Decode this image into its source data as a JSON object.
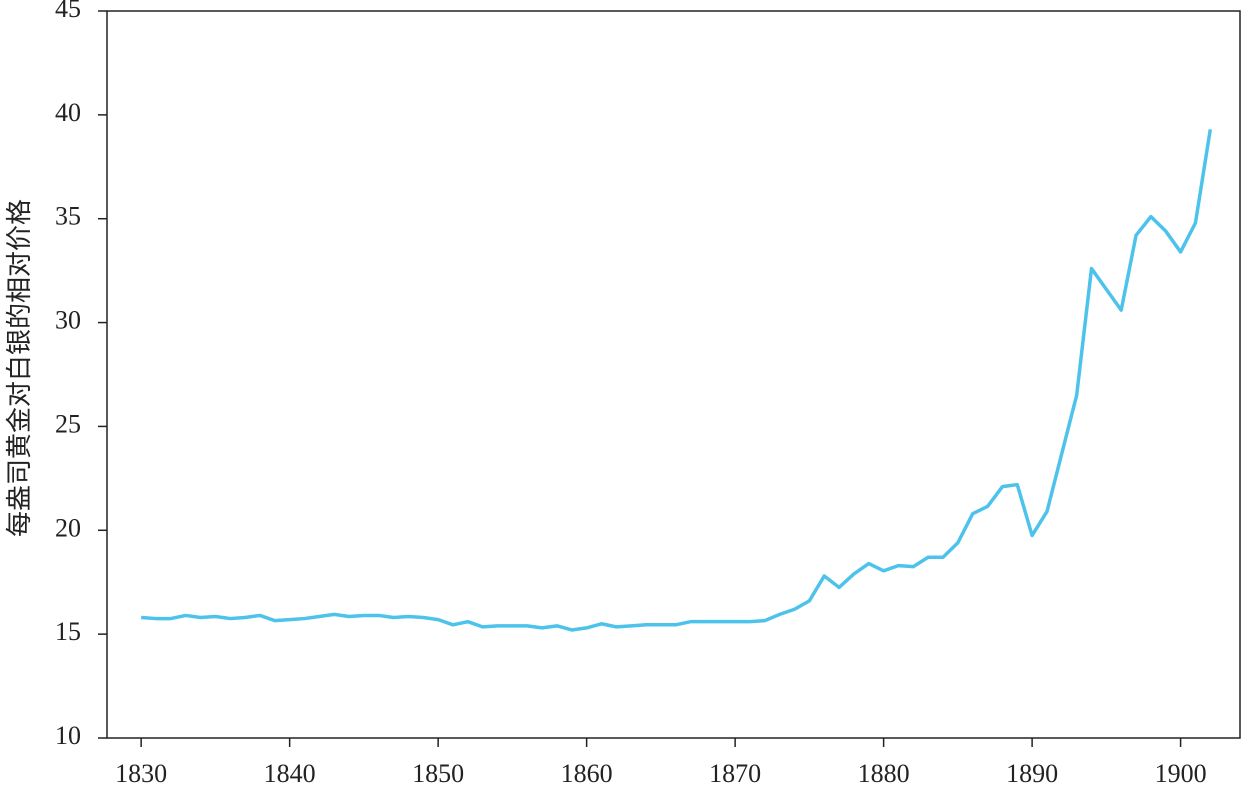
{
  "chart_data": {
    "type": "line",
    "y_label": "每盎司黄金对白银的相对价格",
    "x": [
      1830,
      1831,
      1832,
      1833,
      1834,
      1835,
      1836,
      1837,
      1838,
      1839,
      1840,
      1841,
      1842,
      1843,
      1844,
      1845,
      1846,
      1847,
      1848,
      1849,
      1850,
      1851,
      1852,
      1853,
      1854,
      1855,
      1856,
      1857,
      1858,
      1859,
      1860,
      1861,
      1862,
      1863,
      1864,
      1865,
      1866,
      1867,
      1868,
      1869,
      1870,
      1871,
      1872,
      1873,
      1874,
      1875,
      1876,
      1877,
      1878,
      1879,
      1880,
      1881,
      1882,
      1883,
      1884,
      1885,
      1886,
      1887,
      1888,
      1889,
      1890,
      1891,
      1892,
      1893,
      1894,
      1895,
      1896,
      1897,
      1898,
      1899,
      1900,
      1901,
      1902
    ],
    "values": [
      15.8,
      15.75,
      15.75,
      15.9,
      15.8,
      15.85,
      15.75,
      15.8,
      15.9,
      15.65,
      15.7,
      15.75,
      15.85,
      15.95,
      15.85,
      15.9,
      15.9,
      15.8,
      15.85,
      15.8,
      15.7,
      15.45,
      15.6,
      15.35,
      15.4,
      15.4,
      15.4,
      15.3,
      15.4,
      15.2,
      15.3,
      15.5,
      15.35,
      15.4,
      15.45,
      15.45,
      15.45,
      15.6,
      15.6,
      15.6,
      15.6,
      15.6,
      15.65,
      15.95,
      16.2,
      16.6,
      17.8,
      17.25,
      17.9,
      18.4,
      18.05,
      18.3,
      18.25,
      18.7,
      18.7,
      19.4,
      20.8,
      21.15,
      22.1,
      22.2,
      19.75,
      20.9,
      23.7,
      26.5,
      32.6,
      31.6,
      30.6,
      34.2,
      35.1,
      34.4,
      33.4,
      34.8,
      39.3
    ],
    "color": "#4dc3ec",
    "xlim": [
      1827.7,
      1904
    ],
    "ylim": [
      10,
      45
    ],
    "xticks": [
      1830,
      1840,
      1850,
      1860,
      1870,
      1880,
      1890,
      1900
    ],
    "yticks": [
      10,
      15,
      20,
      25,
      30,
      35,
      40,
      45
    ]
  }
}
